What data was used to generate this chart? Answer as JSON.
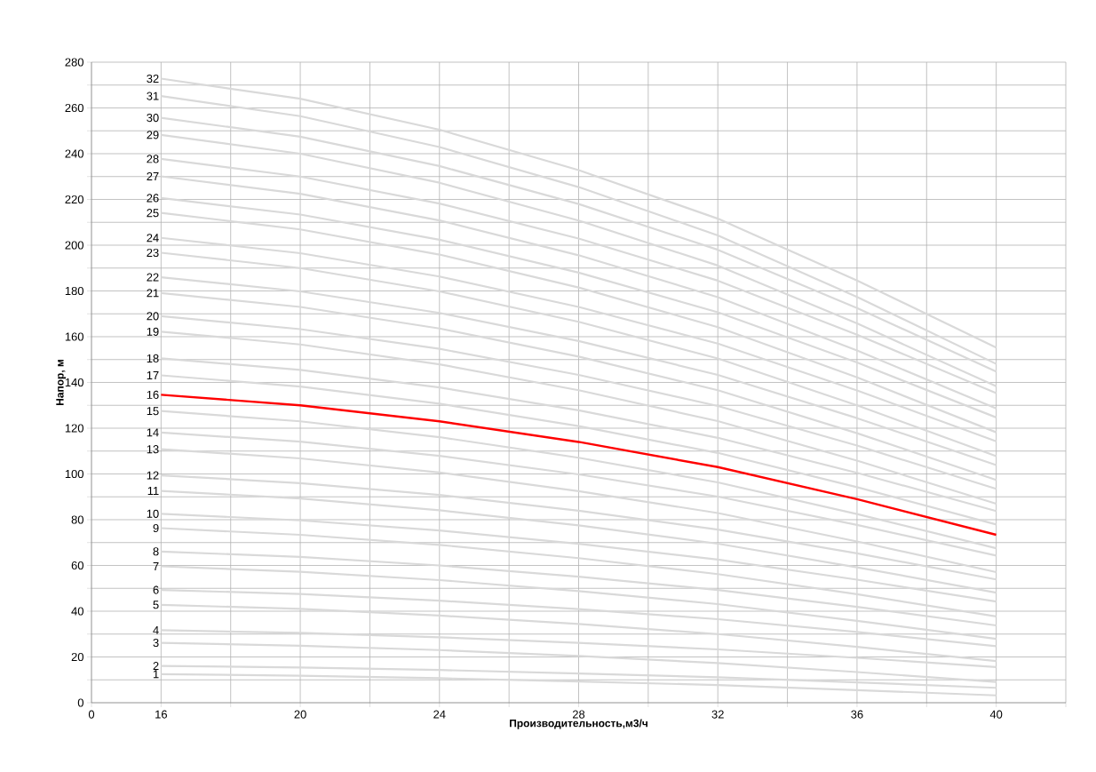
{
  "chart_data": {
    "type": "line",
    "xlabel": "Производительность,м3/ч",
    "ylabel": "Напор, м",
    "categories": [
      "0",
      "16",
      null,
      "20",
      null,
      "24",
      null,
      "28",
      null,
      "32",
      null,
      "36",
      null,
      "40",
      null
    ],
    "ylim": [
      0,
      280
    ],
    "yticks": [
      0,
      {
        "value": 10,
        "label": null
      },
      20,
      {
        "value": 30,
        "label": null
      },
      40,
      {
        "value": 50,
        "label": null
      },
      60,
      {
        "value": 70,
        "label": null
      },
      80,
      {
        "value": 90,
        "label": null
      },
      100,
      {
        "value": 110,
        "label": null
      },
      120,
      {
        "value": 130,
        "label": null
      },
      140,
      {
        "value": 150,
        "label": null
      },
      160,
      {
        "value": 170,
        "label": null
      },
      180,
      {
        "value": 190,
        "label": null
      },
      200,
      {
        "value": 210,
        "label": null
      },
      220,
      {
        "value": 230,
        "label": null
      },
      240,
      {
        "value": 250,
        "label": null
      },
      260,
      {
        "value": 270,
        "label": null
      },
      280
    ],
    "grid": true,
    "series": [
      {
        "name": "1",
        "color": "#d9d9d9",
        "values": [
          null,
          12.5,
          null,
          11.8,
          null,
          10.7,
          null,
          9.3,
          null,
          7.7,
          null,
          5.5,
          null,
          3.2,
          null
        ]
      },
      {
        "name": "2",
        "color": "#d9d9d9",
        "values": [
          null,
          16.1,
          null,
          15.4,
          null,
          14.3,
          null,
          12.8,
          null,
          11.1,
          null,
          8.9,
          null,
          6.5,
          null
        ]
      },
      {
        "name": "3",
        "color": "#d9d9d9",
        "values": [
          null,
          26.2,
          null,
          24.9,
          null,
          23.0,
          null,
          20.4,
          null,
          17.3,
          null,
          13.4,
          null,
          9.1,
          null
        ]
      },
      {
        "name": "4",
        "color": "#d9d9d9",
        "values": [
          null,
          31.7,
          null,
          30.5,
          null,
          28.6,
          null,
          26.2,
          null,
          23.3,
          null,
          19.6,
          null,
          15.6,
          null
        ]
      },
      {
        "name": "5",
        "color": "#d9d9d9",
        "values": [
          null,
          42.8,
          null,
          41.0,
          null,
          38.1,
          null,
          34.4,
          null,
          30.0,
          null,
          24.4,
          null,
          18.2,
          null
        ]
      },
      {
        "name": "6",
        "color": "#d9d9d9",
        "values": [
          null,
          49.3,
          null,
          47.5,
          null,
          44.6,
          null,
          40.9,
          null,
          36.5,
          null,
          30.9,
          null,
          24.7,
          null
        ]
      },
      {
        "name": "7",
        "color": "#d9d9d9",
        "values": [
          null,
          59.6,
          null,
          57.2,
          null,
          53.6,
          null,
          48.8,
          null,
          43.1,
          null,
          35.8,
          null,
          27.9,
          null
        ]
      },
      {
        "name": "8",
        "color": "#d9d9d9",
        "values": [
          null,
          66.1,
          null,
          63.7,
          null,
          60.0,
          null,
          55.1,
          null,
          49.3,
          null,
          41.9,
          null,
          33.8,
          null
        ]
      },
      {
        "name": "9",
        "color": "#d9d9d9",
        "values": [
          null,
          76.3,
          null,
          73.4,
          null,
          69.0,
          null,
          63.2,
          null,
          56.2,
          null,
          47.4,
          null,
          37.7,
          null
        ]
      },
      {
        "name": "10",
        "color": "#d9d9d9",
        "values": [
          null,
          82.6,
          null,
          79.7,
          null,
          75.3,
          null,
          69.5,
          null,
          62.6,
          null,
          53.8,
          null,
          44.2,
          null
        ]
      },
      {
        "name": "11",
        "color": "#d9d9d9",
        "values": [
          null,
          92.6,
          null,
          89.3,
          null,
          84.1,
          null,
          77.5,
          null,
          69.5,
          null,
          59.2,
          null,
          48.1,
          null
        ]
      },
      {
        "name": "12",
        "color": "#d9d9d9",
        "values": [
          null,
          99.4,
          null,
          96.0,
          null,
          90.8,
          null,
          83.9,
          null,
          75.7,
          null,
          65.3,
          null,
          53.9,
          null
        ]
      },
      {
        "name": "13",
        "color": "#d9d9d9",
        "values": [
          null,
          110.8,
          null,
          106.8,
          null,
          100.6,
          null,
          92.5,
          null,
          82.9,
          null,
          70.5,
          null,
          57.1,
          null
        ]
      },
      {
        "name": "14",
        "color": "#d9d9d9",
        "values": [
          null,
          118.1,
          null,
          114.1,
          null,
          107.9,
          null,
          99.8,
          null,
          90.1,
          null,
          77.7,
          null,
          64.3,
          null
        ]
      },
      {
        "name": "15",
        "color": "#d9d9d9",
        "values": [
          null,
          127.5,
          null,
          123.0,
          null,
          116.1,
          null,
          107.1,
          null,
          96.3,
          null,
          82.5,
          null,
          67.5,
          null
        ]
      },
      {
        "name": "16",
        "color": "#ff0000",
        "values": [
          null,
          134.6,
          null,
          130,
          null,
          123,
          null,
          114,
          null,
          103,
          null,
          89,
          null,
          73.4,
          null
        ]
      },
      {
        "name": "17",
        "color": "#d9d9d9",
        "values": [
          null,
          143.1,
          null,
          138.2,
          null,
          130.7,
          null,
          120.9,
          null,
          109.2,
          null,
          94.2,
          null,
          77.9,
          null
        ]
      },
      {
        "name": "18",
        "color": "#d9d9d9",
        "values": [
          null,
          150.5,
          null,
          145.5,
          null,
          137.8,
          null,
          127.8,
          null,
          115.8,
          null,
          100.5,
          null,
          83.8,
          null
        ]
      },
      {
        "name": "19",
        "color": "#d9d9d9",
        "values": [
          null,
          162.2,
          null,
          156.6,
          null,
          147.9,
          null,
          136.6,
          null,
          123.1,
          null,
          105.8,
          null,
          87.0,
          null
        ]
      },
      {
        "name": "20",
        "color": "#d9d9d9",
        "values": [
          null,
          169.0,
          null,
          163.3,
          null,
          154.7,
          null,
          143.3,
          null,
          129.7,
          null,
          112.4,
          null,
          93.5,
          null
        ]
      },
      {
        "name": "21",
        "color": "#d9d9d9",
        "values": [
          null,
          179.1,
          null,
          173.0,
          null,
          163.6,
          null,
          151.3,
          null,
          136.6,
          null,
          117.8,
          null,
          97.4,
          null
        ]
      },
      {
        "name": "22",
        "color": "#d9d9d9",
        "values": [
          null,
          186.0,
          null,
          179.8,
          null,
          170.4,
          null,
          158.1,
          null,
          143.3,
          null,
          124.4,
          null,
          103.9,
          null
        ]
      },
      {
        "name": "23",
        "color": "#d9d9d9",
        "values": [
          null,
          196.7,
          null,
          190.0,
          null,
          179.8,
          null,
          166.5,
          null,
          150.5,
          null,
          130.0,
          null,
          107.8,
          null
        ]
      },
      {
        "name": "24",
        "color": "#d9d9d9",
        "values": [
          null,
          203.2,
          null,
          196.5,
          null,
          186.3,
          null,
          173.0,
          null,
          157.0,
          null,
          136.5,
          null,
          114.3,
          null
        ]
      },
      {
        "name": "25",
        "color": "#d9d9d9",
        "values": [
          null,
          214.1,
          null,
          206.9,
          null,
          195.9,
          null,
          181.5,
          null,
          164.2,
          null,
          142.2,
          null,
          118.2,
          null
        ]
      },
      {
        "name": "26",
        "color": "#d9d9d9",
        "values": [
          null,
          220.6,
          null,
          213.4,
          null,
          202.4,
          null,
          188.0,
          null,
          170.7,
          null,
          148.7,
          null,
          124.7,
          null
        ]
      },
      {
        "name": "27",
        "color": "#d9d9d9",
        "values": [
          null,
          230.1,
          null,
          222.5,
          null,
          210.8,
          null,
          195.6,
          null,
          177.3,
          null,
          154.0,
          null,
          128.6,
          null
        ]
      },
      {
        "name": "28",
        "color": "#d9d9d9",
        "values": [
          null,
          237.7,
          null,
          230.0,
          null,
          218.2,
          null,
          202.9,
          null,
          184.5,
          null,
          160.9,
          null,
          135.3,
          null
        ]
      },
      {
        "name": "29",
        "color": "#d9d9d9",
        "values": [
          null,
          248.2,
          null,
          240.0,
          null,
          227.3,
          null,
          210.8,
          null,
          191.1,
          null,
          165.8,
          null,
          138.3,
          null
        ]
      },
      {
        "name": "30",
        "color": "#d9d9d9",
        "values": [
          null,
          255.7,
          null,
          247.4,
          null,
          234.6,
          null,
          218.0,
          null,
          198.0,
          null,
          172.5,
          null,
          144.8,
          null
        ]
      },
      {
        "name": "31",
        "color": "#d9d9d9",
        "values": [
          null,
          265.2,
          null,
          256.4,
          null,
          242.9,
          null,
          225.4,
          null,
          204.3,
          null,
          177.4,
          null,
          148.1,
          null
        ]
      },
      {
        "name": "32",
        "color": "#d9d9d9",
        "values": [
          null,
          272.8,
          null,
          264.0,
          null,
          250.5,
          null,
          232.8,
          null,
          211.6,
          null,
          184.6,
          null,
          155.2,
          null
        ]
      }
    ]
  }
}
